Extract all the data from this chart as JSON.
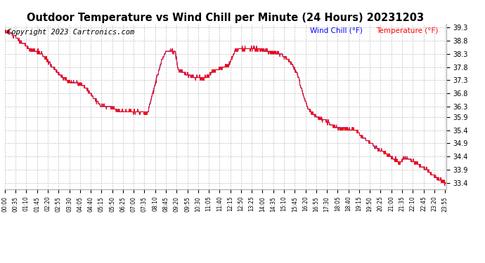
{
  "title": "Outdoor Temperature vs Wind Chill per Minute (24 Hours) 20231203",
  "copyright": "Copyright 2023 Cartronics.com",
  "legend_wind_chill": "Wind Chill (°F)",
  "legend_temperature": "Temperature (°F)",
  "wind_chill_color": "blue",
  "temperature_color": "red",
  "ylim": [
    33.15,
    39.45
  ],
  "yticks": [
    33.4,
    33.9,
    34.4,
    34.9,
    35.4,
    35.9,
    36.3,
    36.8,
    37.3,
    37.8,
    38.3,
    38.8,
    39.3
  ],
  "background_color": "#ffffff",
  "grid_color": "#bbbbbb",
  "title_fontsize": 10.5,
  "copyright_fontsize": 7.5,
  "tick_interval": 35,
  "ctrl_x": [
    0,
    20,
    60,
    80,
    120,
    180,
    210,
    255,
    310,
    390,
    430,
    465,
    510,
    525,
    555,
    565,
    610,
    650,
    670,
    700,
    730,
    750,
    790,
    800,
    840,
    870,
    895,
    915,
    940,
    955,
    970,
    990,
    1010,
    1040,
    1070,
    1095,
    1120,
    1145,
    1170,
    1210,
    1240,
    1265,
    1285,
    1305,
    1325,
    1350,
    1370,
    1390,
    1415,
    1435
  ],
  "ctrl_y": [
    39.15,
    39.1,
    38.7,
    38.5,
    38.3,
    37.5,
    37.25,
    37.15,
    36.35,
    36.1,
    36.1,
    36.05,
    38.0,
    38.4,
    38.4,
    37.7,
    37.45,
    37.35,
    37.55,
    37.75,
    37.85,
    38.45,
    38.5,
    38.5,
    38.45,
    38.35,
    38.3,
    38.2,
    37.85,
    37.5,
    36.85,
    36.2,
    35.95,
    35.8,
    35.55,
    35.45,
    35.45,
    35.4,
    35.1,
    34.75,
    34.55,
    34.35,
    34.15,
    34.35,
    34.25,
    34.1,
    33.95,
    33.75,
    33.55,
    33.4
  ]
}
